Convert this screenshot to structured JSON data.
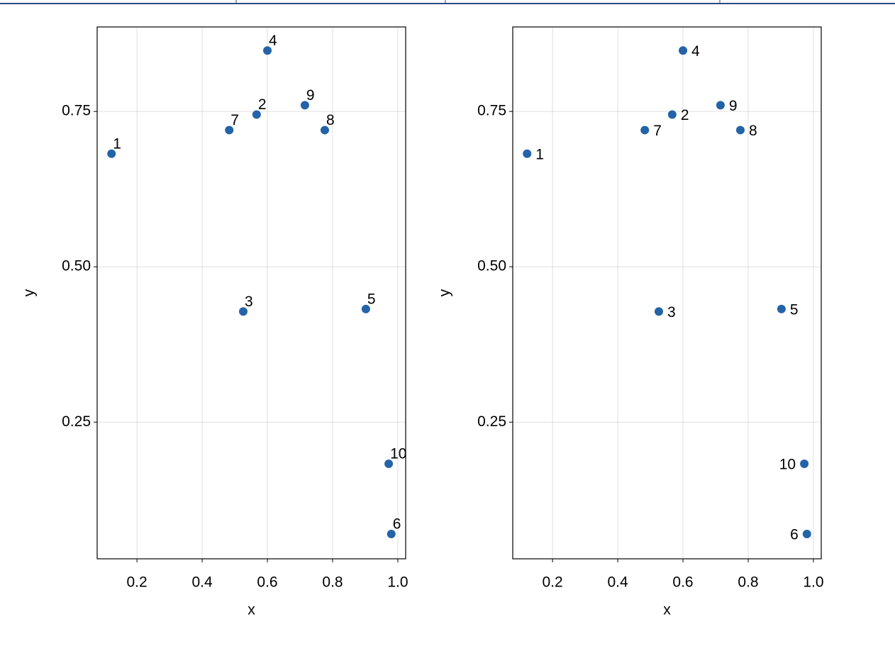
{
  "chart_data": [
    {
      "type": "scatter",
      "xlabel": "x",
      "ylabel": "y",
      "x": [
        0.122,
        0.567,
        0.526,
        0.6,
        0.902,
        0.98,
        0.483,
        0.776,
        0.715,
        0.972
      ],
      "y": [
        0.682,
        0.745,
        0.428,
        0.848,
        0.432,
        0.07,
        0.72,
        0.72,
        0.76,
        0.183
      ],
      "labels": [
        "1",
        "2",
        "3",
        "4",
        "5",
        "6",
        "7",
        "8",
        "9",
        "10"
      ],
      "color": "#2463a8",
      "grid": true,
      "xlim": [
        0.078,
        1.024
      ],
      "ylim": [
        0.03,
        0.886
      ],
      "xticks": [
        0.2,
        0.4,
        0.6,
        0.8,
        {
          "value": 1.0,
          "label": "1.0"
        }
      ],
      "yticks": [
        0.25,
        {
          "value": 0.5,
          "label": "0.50"
        },
        0.75
      ]
    },
    {
      "type": "scatter",
      "xlabel": "x",
      "ylabel": "y",
      "x": [
        0.122,
        0.567,
        0.526,
        0.6,
        0.902,
        0.98,
        0.483,
        0.776,
        0.715,
        0.972
      ],
      "y": [
        0.682,
        0.745,
        0.428,
        0.848,
        0.432,
        0.07,
        0.72,
        0.72,
        0.76,
        0.183
      ],
      "labels": [
        "1",
        "2",
        "3",
        "4",
        "5",
        "6",
        "7",
        "8",
        "9",
        "10"
      ],
      "color": "#2463a8",
      "grid": true,
      "xlim": [
        0.078,
        1.024
      ],
      "ylim": [
        0.03,
        0.886
      ],
      "xticks": [
        0.2,
        0.4,
        0.6,
        0.8,
        {
          "value": 1.0,
          "label": "1.0"
        }
      ],
      "yticks": [
        0.25,
        {
          "value": 0.5,
          "label": "0.50"
        },
        0.75
      ]
    }
  ]
}
